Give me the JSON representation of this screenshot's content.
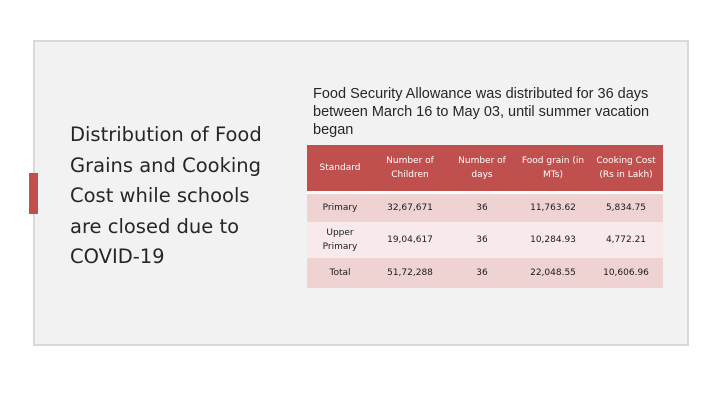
{
  "slide": {
    "title": "Distribution of Food Grains and Cooking Cost while schools are closed due to COVID-19",
    "intro": "Food Security Allowance was distributed for 36 days between March 16 to May 03, until summer vacation began",
    "accent_color": "#c0504d"
  },
  "table": {
    "headers": [
      "Standard",
      "Number of Children",
      "Number of days",
      "Food grain (in MTs)",
      "Cooking Cost (Rs in Lakh)"
    ],
    "rows": [
      [
        "Primary",
        "32,67,671",
        "36",
        "11,763.62",
        "5,834.75"
      ],
      [
        "Upper Primary",
        "19,04,617",
        "36",
        "10,284.93",
        "4,772.21"
      ],
      [
        "Total",
        "51,72,288",
        "36",
        "22,048.55",
        "10,606.96"
      ]
    ],
    "header_color": "#c0504d",
    "row_color": "#efd3d2",
    "alt_row_color": "#f8eaea"
  }
}
